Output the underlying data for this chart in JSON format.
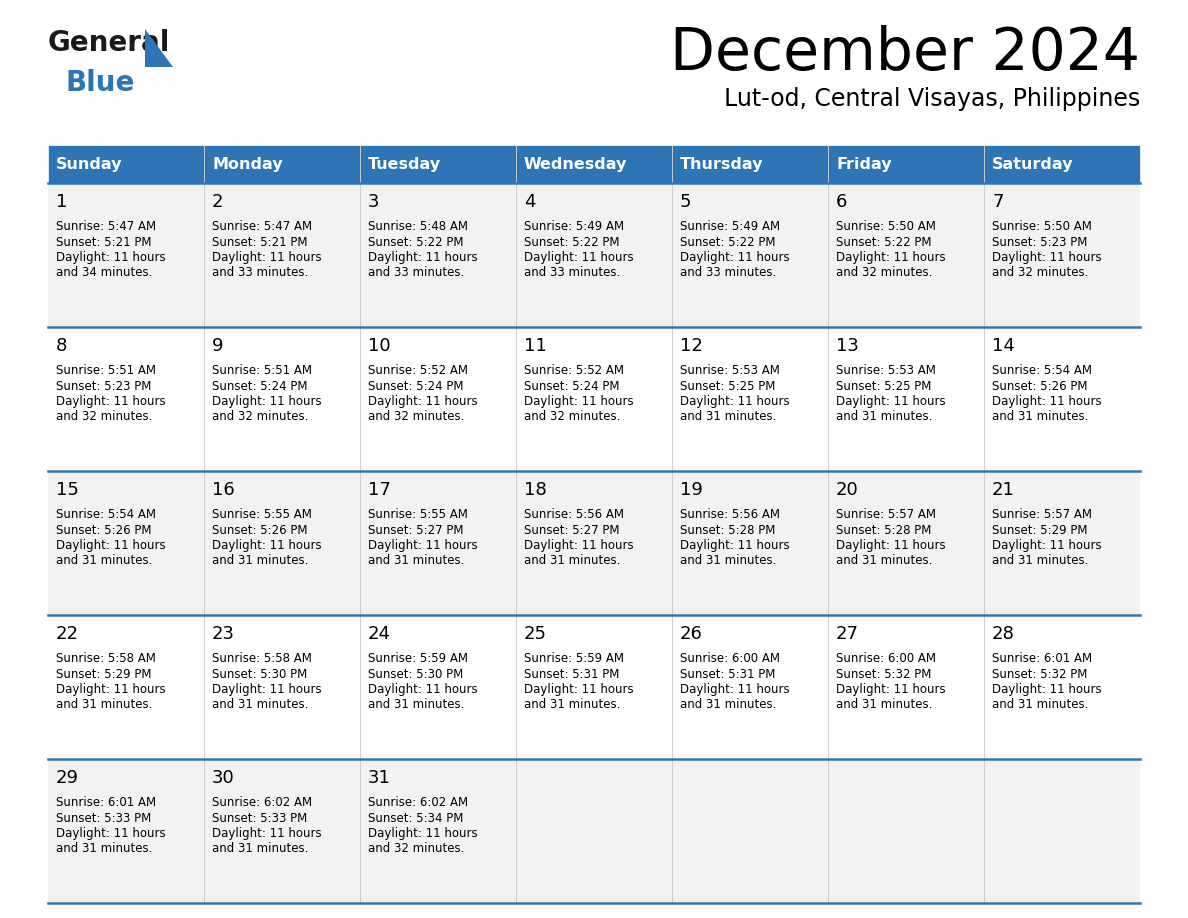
{
  "title": "December 2024",
  "subtitle": "Lut-od, Central Visayas, Philippines",
  "header_bg": "#2E75B6",
  "header_text_color": "#FFFFFF",
  "day_names": [
    "Sunday",
    "Monday",
    "Tuesday",
    "Wednesday",
    "Thursday",
    "Friday",
    "Saturday"
  ],
  "row_bg_even": "#F2F2F2",
  "row_bg_odd": "#FFFFFF",
  "cell_text_color": "#000000",
  "divider_color": "#2E75B6",
  "days": [
    {
      "day": 1,
      "col": 0,
      "row": 0,
      "sunrise": "5:47 AM",
      "sunset": "5:21 PM",
      "daylight_hours": 11,
      "daylight_minutes": 34
    },
    {
      "day": 2,
      "col": 1,
      "row": 0,
      "sunrise": "5:47 AM",
      "sunset": "5:21 PM",
      "daylight_hours": 11,
      "daylight_minutes": 33
    },
    {
      "day": 3,
      "col": 2,
      "row": 0,
      "sunrise": "5:48 AM",
      "sunset": "5:22 PM",
      "daylight_hours": 11,
      "daylight_minutes": 33
    },
    {
      "day": 4,
      "col": 3,
      "row": 0,
      "sunrise": "5:49 AM",
      "sunset": "5:22 PM",
      "daylight_hours": 11,
      "daylight_minutes": 33
    },
    {
      "day": 5,
      "col": 4,
      "row": 0,
      "sunrise": "5:49 AM",
      "sunset": "5:22 PM",
      "daylight_hours": 11,
      "daylight_minutes": 33
    },
    {
      "day": 6,
      "col": 5,
      "row": 0,
      "sunrise": "5:50 AM",
      "sunset": "5:22 PM",
      "daylight_hours": 11,
      "daylight_minutes": 32
    },
    {
      "day": 7,
      "col": 6,
      "row": 0,
      "sunrise": "5:50 AM",
      "sunset": "5:23 PM",
      "daylight_hours": 11,
      "daylight_minutes": 32
    },
    {
      "day": 8,
      "col": 0,
      "row": 1,
      "sunrise": "5:51 AM",
      "sunset": "5:23 PM",
      "daylight_hours": 11,
      "daylight_minutes": 32
    },
    {
      "day": 9,
      "col": 1,
      "row": 1,
      "sunrise": "5:51 AM",
      "sunset": "5:24 PM",
      "daylight_hours": 11,
      "daylight_minutes": 32
    },
    {
      "day": 10,
      "col": 2,
      "row": 1,
      "sunrise": "5:52 AM",
      "sunset": "5:24 PM",
      "daylight_hours": 11,
      "daylight_minutes": 32
    },
    {
      "day": 11,
      "col": 3,
      "row": 1,
      "sunrise": "5:52 AM",
      "sunset": "5:24 PM",
      "daylight_hours": 11,
      "daylight_minutes": 32
    },
    {
      "day": 12,
      "col": 4,
      "row": 1,
      "sunrise": "5:53 AM",
      "sunset": "5:25 PM",
      "daylight_hours": 11,
      "daylight_minutes": 31
    },
    {
      "day": 13,
      "col": 5,
      "row": 1,
      "sunrise": "5:53 AM",
      "sunset": "5:25 PM",
      "daylight_hours": 11,
      "daylight_minutes": 31
    },
    {
      "day": 14,
      "col": 6,
      "row": 1,
      "sunrise": "5:54 AM",
      "sunset": "5:26 PM",
      "daylight_hours": 11,
      "daylight_minutes": 31
    },
    {
      "day": 15,
      "col": 0,
      "row": 2,
      "sunrise": "5:54 AM",
      "sunset": "5:26 PM",
      "daylight_hours": 11,
      "daylight_minutes": 31
    },
    {
      "day": 16,
      "col": 1,
      "row": 2,
      "sunrise": "5:55 AM",
      "sunset": "5:26 PM",
      "daylight_hours": 11,
      "daylight_minutes": 31
    },
    {
      "day": 17,
      "col": 2,
      "row": 2,
      "sunrise": "5:55 AM",
      "sunset": "5:27 PM",
      "daylight_hours": 11,
      "daylight_minutes": 31
    },
    {
      "day": 18,
      "col": 3,
      "row": 2,
      "sunrise": "5:56 AM",
      "sunset": "5:27 PM",
      "daylight_hours": 11,
      "daylight_minutes": 31
    },
    {
      "day": 19,
      "col": 4,
      "row": 2,
      "sunrise": "5:56 AM",
      "sunset": "5:28 PM",
      "daylight_hours": 11,
      "daylight_minutes": 31
    },
    {
      "day": 20,
      "col": 5,
      "row": 2,
      "sunrise": "5:57 AM",
      "sunset": "5:28 PM",
      "daylight_hours": 11,
      "daylight_minutes": 31
    },
    {
      "day": 21,
      "col": 6,
      "row": 2,
      "sunrise": "5:57 AM",
      "sunset": "5:29 PM",
      "daylight_hours": 11,
      "daylight_minutes": 31
    },
    {
      "day": 22,
      "col": 0,
      "row": 3,
      "sunrise": "5:58 AM",
      "sunset": "5:29 PM",
      "daylight_hours": 11,
      "daylight_minutes": 31
    },
    {
      "day": 23,
      "col": 1,
      "row": 3,
      "sunrise": "5:58 AM",
      "sunset": "5:30 PM",
      "daylight_hours": 11,
      "daylight_minutes": 31
    },
    {
      "day": 24,
      "col": 2,
      "row": 3,
      "sunrise": "5:59 AM",
      "sunset": "5:30 PM",
      "daylight_hours": 11,
      "daylight_minutes": 31
    },
    {
      "day": 25,
      "col": 3,
      "row": 3,
      "sunrise": "5:59 AM",
      "sunset": "5:31 PM",
      "daylight_hours": 11,
      "daylight_minutes": 31
    },
    {
      "day": 26,
      "col": 4,
      "row": 3,
      "sunrise": "6:00 AM",
      "sunset": "5:31 PM",
      "daylight_hours": 11,
      "daylight_minutes": 31
    },
    {
      "day": 27,
      "col": 5,
      "row": 3,
      "sunrise": "6:00 AM",
      "sunset": "5:32 PM",
      "daylight_hours": 11,
      "daylight_minutes": 31
    },
    {
      "day": 28,
      "col": 6,
      "row": 3,
      "sunrise": "6:01 AM",
      "sunset": "5:32 PM",
      "daylight_hours": 11,
      "daylight_minutes": 31
    },
    {
      "day": 29,
      "col": 0,
      "row": 4,
      "sunrise": "6:01 AM",
      "sunset": "5:33 PM",
      "daylight_hours": 11,
      "daylight_minutes": 31
    },
    {
      "day": 30,
      "col": 1,
      "row": 4,
      "sunrise": "6:02 AM",
      "sunset": "5:33 PM",
      "daylight_hours": 11,
      "daylight_minutes": 31
    },
    {
      "day": 31,
      "col": 2,
      "row": 4,
      "sunrise": "6:02 AM",
      "sunset": "5:34 PM",
      "daylight_hours": 11,
      "daylight_minutes": 32
    }
  ],
  "logo_general_color": "#1a1a1a",
  "logo_blue_color": "#2E75B6",
  "num_calendar_rows": 5
}
